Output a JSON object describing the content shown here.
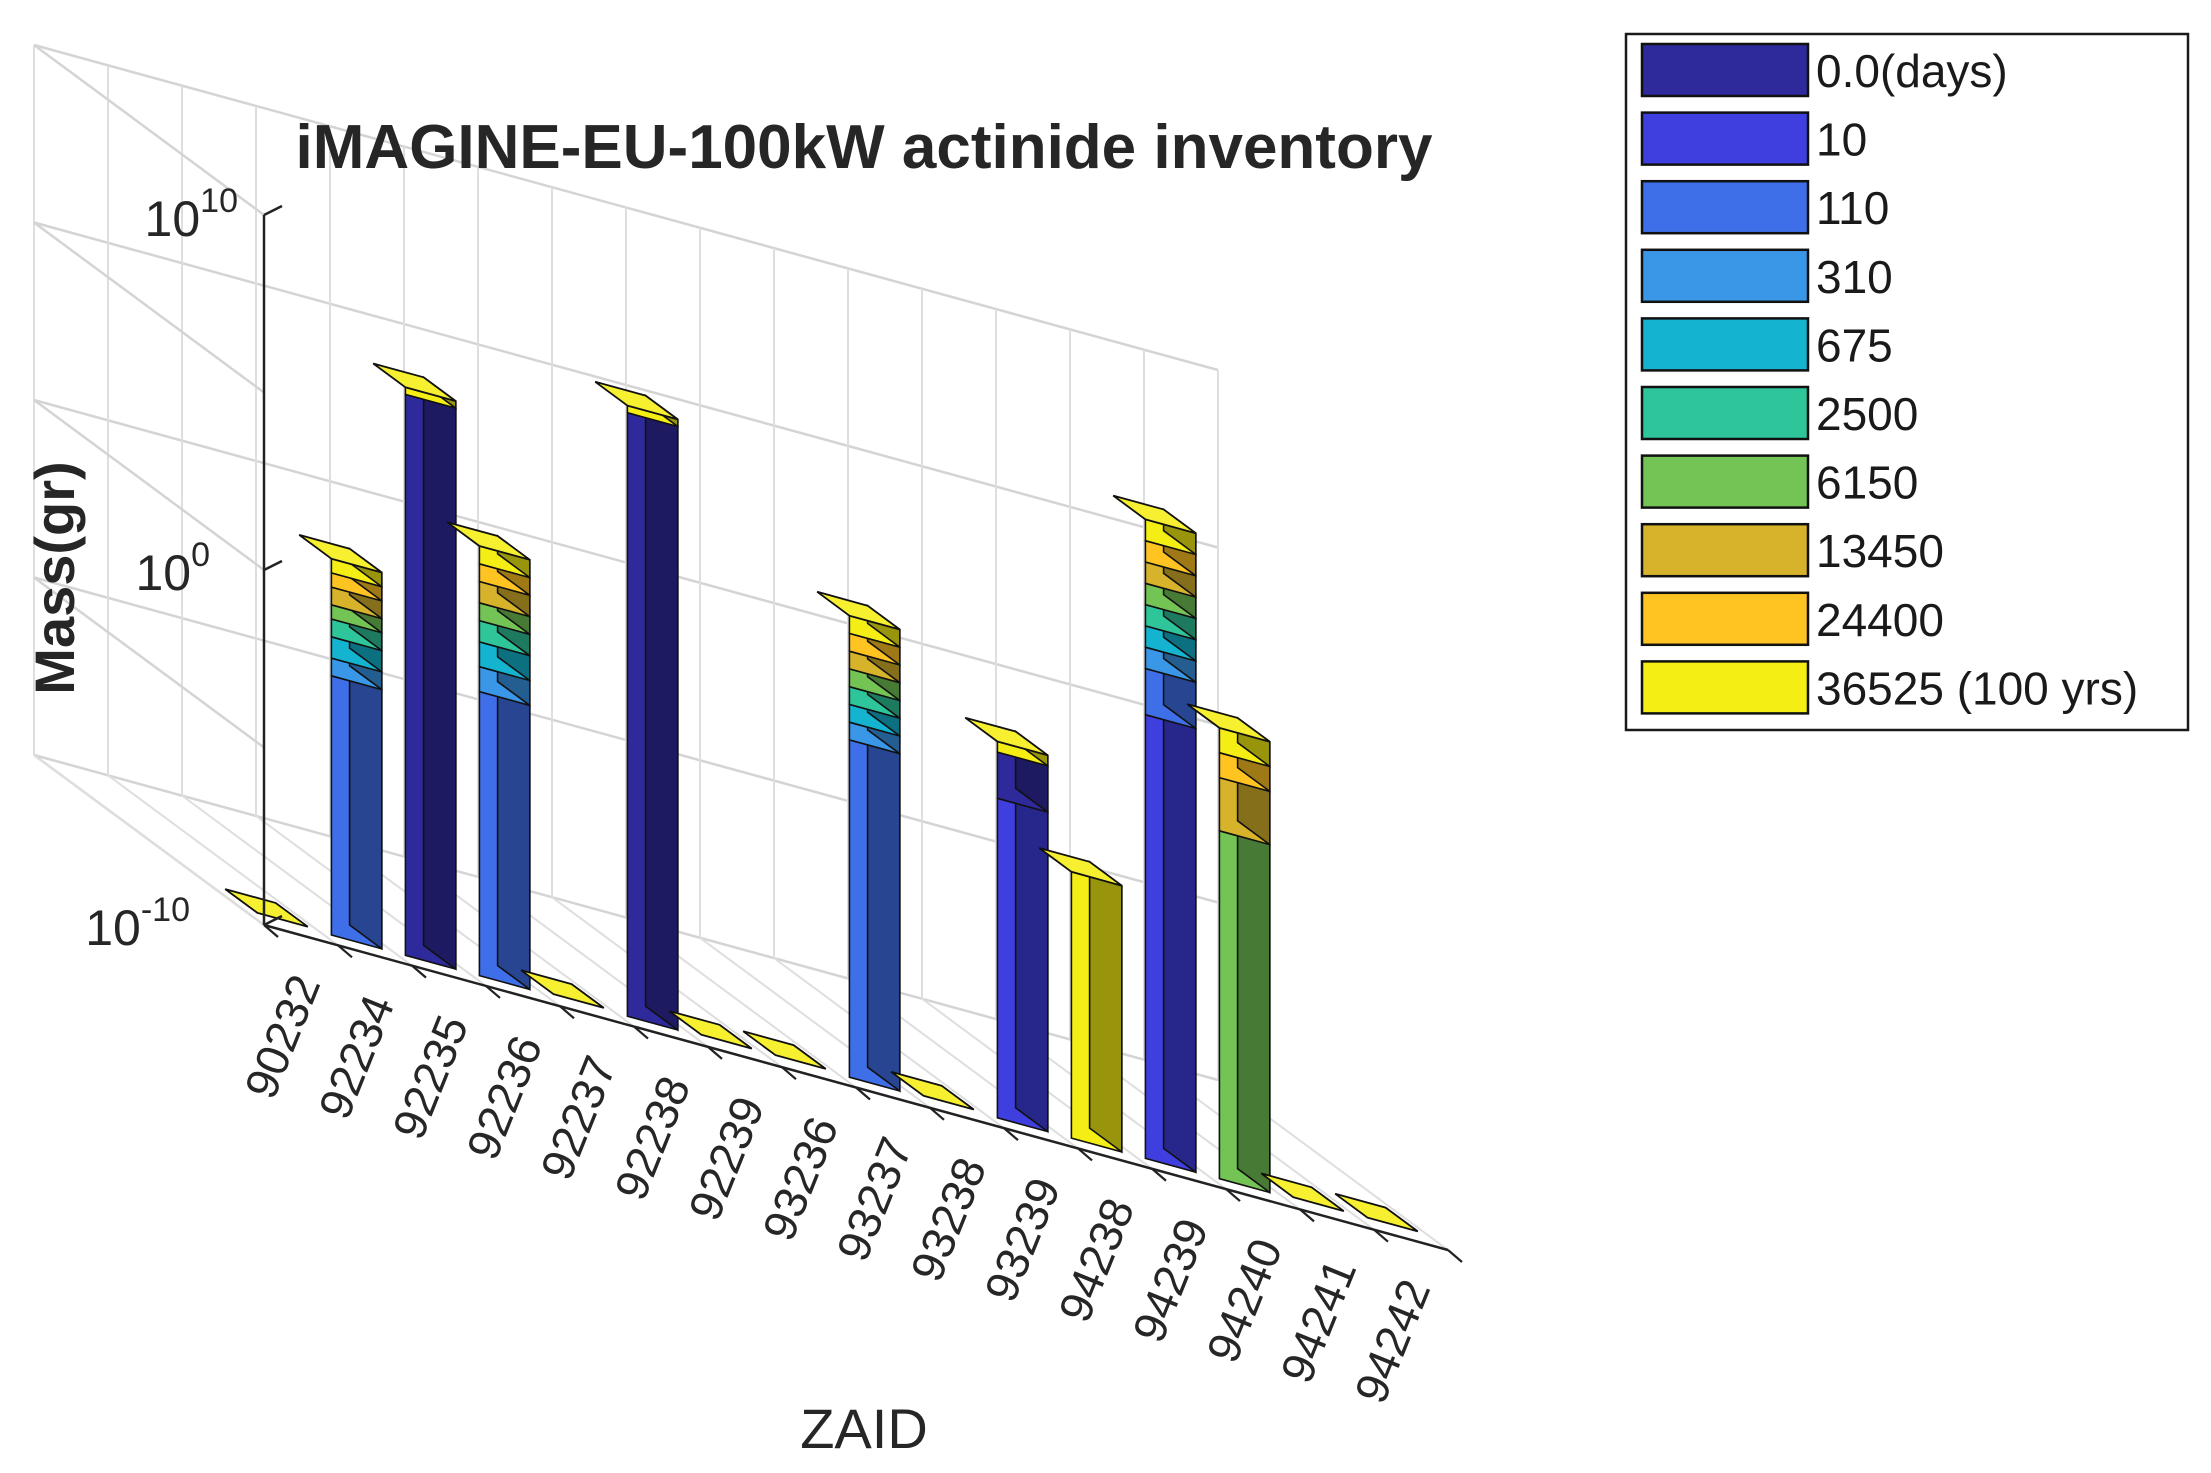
{
  "chart_data": {
    "type": "bar",
    "subtype": "3d-stacked-log",
    "title": "iMAGINE-EU-100kW actinide inventory",
    "xlabel": "ZAID",
    "ylabel": "Mass(gr)",
    "y_scale": "log",
    "ylim_exponent": [
      -10,
      10
    ],
    "y_ticks": [
      {
        "base": "10",
        "exp": "10",
        "value": 10
      },
      {
        "base": "10",
        "exp": "0",
        "value": 0
      },
      {
        "base": "10",
        "exp": "-10",
        "value": -10
      }
    ],
    "grid": true,
    "legend_position": "top-right-outside",
    "categories": [
      "90232",
      "92234",
      "92235",
      "92236",
      "92237",
      "92238",
      "92239",
      "93236",
      "93237",
      "93238",
      "93239",
      "94238",
      "94239",
      "94240",
      "94241",
      "94242"
    ],
    "series": [
      {
        "name": "0.0(days)",
        "color": "#2e2a9c"
      },
      {
        "name": "10",
        "color": "#3f3fe0"
      },
      {
        "name": "110",
        "color": "#3f6fe8"
      },
      {
        "name": "310",
        "color": "#3a96e6"
      },
      {
        "name": "675",
        "color": "#14b4d0"
      },
      {
        "name": "2500",
        "color": "#2ec59a"
      },
      {
        "name": "6150",
        "color": "#73c454"
      },
      {
        "name": "13450",
        "color": "#d6b32a"
      },
      {
        "name": "24400",
        "color": "#ffc322"
      },
      {
        "name": "36525 (100 yrs)",
        "color": "#f5ee14"
      }
    ],
    "bars_log10_mass": [
      {
        "zaid": "90232",
        "segments": [
          {
            "series": 9,
            "top": -10
          }
        ]
      },
      {
        "zaid": "92234",
        "segments": [
          {
            "series": 2,
            "top": -2.7
          },
          {
            "series": 3,
            "top": -2.2
          },
          {
            "series": 4,
            "top": -1.6
          },
          {
            "series": 5,
            "top": -1.1
          },
          {
            "series": 6,
            "top": -0.7
          },
          {
            "series": 7,
            "top": -0.2
          },
          {
            "series": 8,
            "top": 0.2
          },
          {
            "series": 9,
            "top": 0.6
          }
        ]
      },
      {
        "zaid": "92235",
        "segments": [
          {
            "series": 0,
            "top": 5.8
          },
          {
            "series": 9,
            "top": 6.0
          }
        ]
      },
      {
        "zaid": "92236",
        "segments": [
          {
            "series": 2,
            "top": -2.0
          },
          {
            "series": 3,
            "top": -1.3
          },
          {
            "series": 4,
            "top": -0.6
          },
          {
            "series": 5,
            "top": 0
          },
          {
            "series": 6,
            "top": 0.5
          },
          {
            "series": 7,
            "top": 1.1
          },
          {
            "series": 8,
            "top": 1.6
          },
          {
            "series": 9,
            "top": 2.1
          }
        ]
      },
      {
        "zaid": "92237",
        "segments": [
          {
            "series": 9,
            "top": -10
          }
        ]
      },
      {
        "zaid": "92238",
        "segments": [
          {
            "series": 0,
            "top": 7.0
          },
          {
            "series": 9,
            "top": 7.2
          }
        ]
      },
      {
        "zaid": "92239",
        "segments": [
          {
            "series": 9,
            "top": -10
          }
        ]
      },
      {
        "zaid": "93236",
        "segments": [
          {
            "series": 9,
            "top": -10
          }
        ]
      },
      {
        "zaid": "93237",
        "segments": [
          {
            "series": 2,
            "top": -0.5
          },
          {
            "series": 3,
            "top": 0
          },
          {
            "series": 4,
            "top": 0.5
          },
          {
            "series": 5,
            "top": 1.0
          },
          {
            "series": 6,
            "top": 1.5
          },
          {
            "series": 7,
            "top": 2.0
          },
          {
            "series": 8,
            "top": 2.5
          },
          {
            "series": 9,
            "top": 3.0
          }
        ]
      },
      {
        "zaid": "93238",
        "segments": [
          {
            "series": 9,
            "top": -10
          }
        ]
      },
      {
        "zaid": "93239",
        "segments": [
          {
            "series": 1,
            "top": -1.0
          },
          {
            "series": 0,
            "top": 0.3
          },
          {
            "series": 9,
            "top": 0.6
          }
        ]
      },
      {
        "zaid": "94238",
        "segments": [
          {
            "series": 9,
            "top": -2.5
          }
        ]
      },
      {
        "zaid": "94239",
        "segments": [
          {
            "series": 1,
            "top": 2.5
          },
          {
            "series": 2,
            "top": 3.8
          },
          {
            "series": 3,
            "top": 4.4
          },
          {
            "series": 4,
            "top": 5.0
          },
          {
            "series": 5,
            "top": 5.6
          },
          {
            "series": 6,
            "top": 6.2
          },
          {
            "series": 7,
            "top": 6.8
          },
          {
            "series": 8,
            "top": 7.4
          },
          {
            "series": 9,
            "top": 8.0
          }
        ]
      },
      {
        "zaid": "94240",
        "segments": [
          {
            "series": 6,
            "top": -0.2
          },
          {
            "series": 7,
            "top": 1.3
          },
          {
            "series": 8,
            "top": 2.0
          },
          {
            "series": 9,
            "top": 2.7
          }
        ]
      },
      {
        "zaid": "94241",
        "segments": [
          {
            "series": 9,
            "top": -10
          }
        ]
      },
      {
        "zaid": "94242",
        "segments": [
          {
            "series": 9,
            "top": -10
          }
        ]
      }
    ]
  }
}
